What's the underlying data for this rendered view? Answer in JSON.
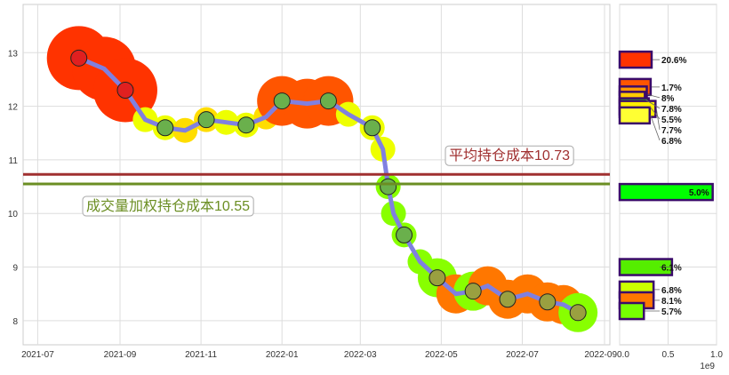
{
  "chart_data": [
    {
      "type": "line",
      "xlim": [
        "2021-06-20",
        "2022-09-05"
      ],
      "ylim": [
        7.55,
        13.9
      ],
      "xticks": [
        "2021-07",
        "2021-09",
        "2021-11",
        "2022-01",
        "2022-03",
        "2022-05",
        "2022-07",
        "2022-09"
      ],
      "yticks": [
        8,
        9,
        10,
        11,
        12,
        13
      ],
      "grid": true,
      "series": [
        {
          "color": "#8080e0",
          "x": [
            "2021-08-01",
            "2021-08-20",
            "2021-09-05",
            "2021-09-20",
            "2021-10-05",
            "2021-10-20",
            "2021-11-05",
            "2021-11-20",
            "2021-12-05",
            "2021-12-20",
            "2022-01-01",
            "2022-01-20",
            "2022-02-05",
            "2022-02-20",
            "2022-03-10",
            "2022-03-18",
            "2022-03-22",
            "2022-03-26",
            "2022-04-03",
            "2022-04-15",
            "2022-04-28",
            "2022-05-12",
            "2022-05-25",
            "2022-06-05",
            "2022-06-20",
            "2022-07-05",
            "2022-07-20",
            "2022-08-01",
            "2022-08-12"
          ],
          "y": [
            12.9,
            12.7,
            12.3,
            11.75,
            11.6,
            11.55,
            11.75,
            11.7,
            11.65,
            11.8,
            12.1,
            12.05,
            12.1,
            11.85,
            11.6,
            11.2,
            10.5,
            10.0,
            9.6,
            9.1,
            8.8,
            8.5,
            8.55,
            8.65,
            8.4,
            8.5,
            8.35,
            8.3,
            8.15
          ]
        }
      ],
      "hlines": [
        {
          "value": 10.73,
          "label": "平均持仓成本10.73",
          "color": "#a03030"
        },
        {
          "value": 10.55,
          "label": "成交量加权持仓成本10.55",
          "color": "#6b8e23"
        }
      ]
    },
    {
      "type": "bar",
      "orientation": "horizontal",
      "xlim": [
        0,
        1.0
      ],
      "x_scale_label": "1e9",
      "xticks": [
        "0.0",
        "0.5",
        "1.0"
      ],
      "bars": [
        {
          "price": 12.87,
          "value": 0.33,
          "label": "20.6%",
          "color": "#ff3300"
        },
        {
          "price": 12.36,
          "value": 0.32,
          "label": "1.7%",
          "color": "#ff5500"
        },
        {
          "price": 12.22,
          "value": 0.28,
          "label": "8%",
          "color": "#ff9900"
        },
        {
          "price": 12.12,
          "value": 0.26,
          "label": "7.8%",
          "color": "#ffcc00"
        },
        {
          "price": 12.0,
          "value": 0.3,
          "label": "5.5%",
          "color": "#33ff00"
        },
        {
          "price": 11.95,
          "value": 0.37,
          "label": "7.7%",
          "color": "#ffee00"
        },
        {
          "price": 11.83,
          "value": 0.31,
          "label": "6.8%",
          "color": "#ffff33"
        },
        {
          "price": 10.4,
          "value": 0.96,
          "label": "5.0%",
          "color": "#00ff00"
        },
        {
          "price": 9.0,
          "value": 0.54,
          "label": "6.1%",
          "color": "#55ee00"
        },
        {
          "price": 8.58,
          "value": 0.35,
          "label": "6.8%",
          "color": "#ccff00"
        },
        {
          "price": 8.38,
          "value": 0.35,
          "label": "8.1%",
          "color": "#ff7700"
        },
        {
          "price": 8.18,
          "value": 0.25,
          "label": "5.7%",
          "color": "#77ff00"
        }
      ]
    }
  ]
}
